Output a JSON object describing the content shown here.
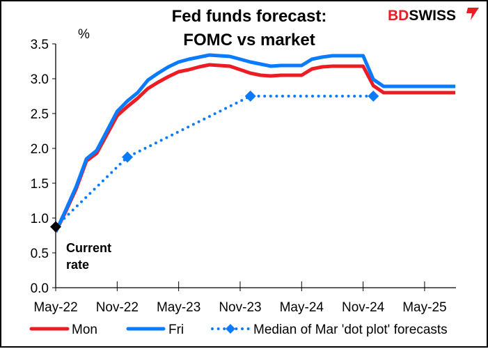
{
  "chart_data": {
    "type": "line",
    "title_lines": [
      "Fed funds forecast:",
      "FOMC vs market"
    ],
    "ylabel": "%",
    "ylim": [
      0,
      3.5
    ],
    "yticks": [
      "0.0",
      "0.5",
      "1.0",
      "1.5",
      "2.0",
      "2.5",
      "3.0",
      "3.5"
    ],
    "ytick_values": [
      0,
      0.5,
      1,
      1.5,
      2,
      2.5,
      3,
      3.5
    ],
    "xtick_labels": [
      "May-22",
      "Nov-22",
      "May-23",
      "Nov-23",
      "May-24",
      "Nov-24",
      "May-25"
    ],
    "x_start": "May-22",
    "x_end": "Aug-25",
    "grid": false,
    "legend_position": "bottom",
    "series": [
      {
        "name": "Mon",
        "color": "#ED1C24",
        "style": "solid",
        "values": [
          0.8,
          1.1,
          1.42,
          1.82,
          1.93,
          2.2,
          2.47,
          2.6,
          2.72,
          2.86,
          2.95,
          3.03,
          3.1,
          3.13,
          3.17,
          3.2,
          3.19,
          3.18,
          3.13,
          3.08,
          3.05,
          3.04,
          3.05,
          3.05,
          3.05,
          3.14,
          3.17,
          3.18,
          3.18,
          3.18,
          3.18,
          2.9,
          2.8,
          2.8,
          2.8,
          2.8,
          2.8,
          2.8,
          2.8,
          2.8
        ]
      },
      {
        "name": "Fri",
        "color": "#0A7BFF",
        "style": "solid",
        "values": [
          0.8,
          1.12,
          1.45,
          1.85,
          1.97,
          2.25,
          2.53,
          2.68,
          2.8,
          2.98,
          3.08,
          3.17,
          3.24,
          3.28,
          3.31,
          3.34,
          3.33,
          3.32,
          3.28,
          3.24,
          3.21,
          3.18,
          3.19,
          3.19,
          3.19,
          3.28,
          3.31,
          3.33,
          3.33,
          3.33,
          3.33,
          2.99,
          2.89,
          2.89,
          2.89,
          2.89,
          2.89,
          2.89,
          2.89,
          2.89
        ]
      },
      {
        "name": "Median of Mar 'dot plot' forecasts",
        "color": "#0A7BFF",
        "style": "dotted-diamond",
        "points": [
          {
            "x": "May-22",
            "y": 0.875
          },
          {
            "x": "Dec-22",
            "y": 1.875
          },
          {
            "x": "Dec-23",
            "y": 2.75
          },
          {
            "x": "Dec-24",
            "y": 2.75
          }
        ]
      }
    ],
    "annotations": [
      {
        "text_lines": [
          "Current",
          "rate"
        ],
        "x": "May-22",
        "y": 0.875,
        "marker_color": "#000000"
      }
    ]
  },
  "logo": {
    "text_bd": "BD",
    "text_swiss": "SWISS",
    "bd_color": "#ED1C24"
  }
}
